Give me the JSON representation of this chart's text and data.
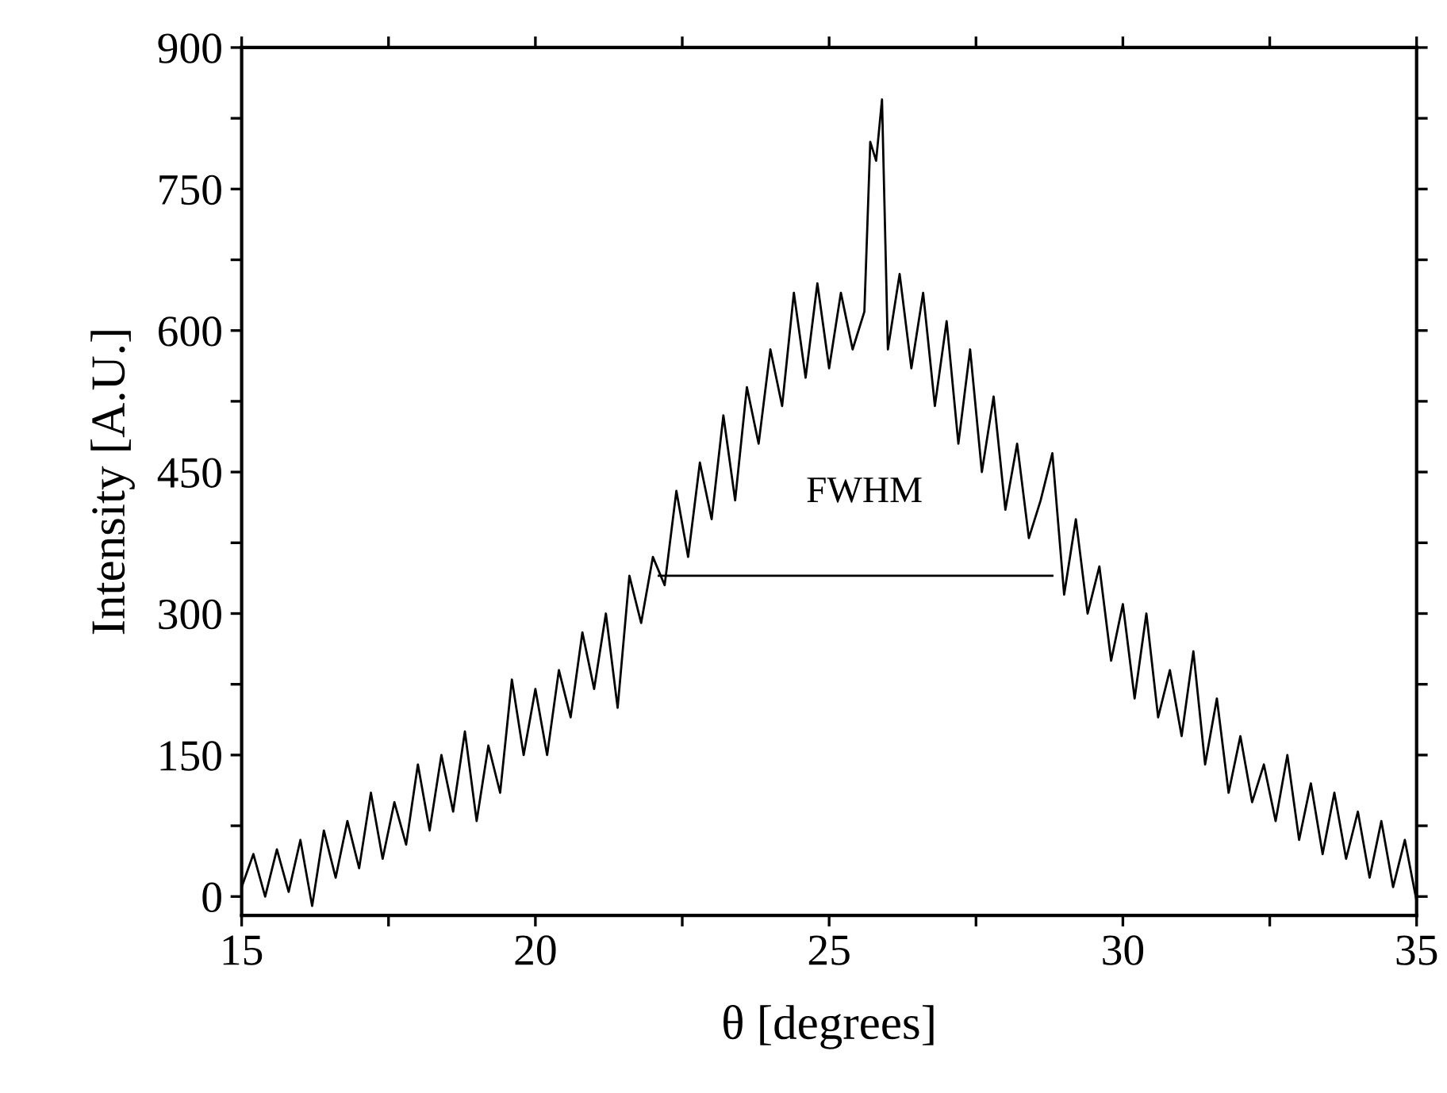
{
  "chart_data": {
    "type": "line",
    "xlabel": "θ [degrees]",
    "ylabel": "Intensity [A.U.]",
    "xlim": [
      15,
      35
    ],
    "ylim": [
      -20,
      900
    ],
    "xticks": [
      15,
      {
        "value": 17.5,
        "label": null
      },
      20,
      {
        "value": 22.5,
        "label": null
      },
      25,
      {
        "value": 27.5,
        "label": null
      },
      30,
      {
        "value": 32.5,
        "label": null
      },
      35
    ],
    "yticks": [
      0,
      {
        "value": 75,
        "label": null
      },
      150,
      {
        "value": 225,
        "label": null
      },
      300,
      {
        "value": 375,
        "label": null
      },
      450,
      {
        "value": 525,
        "label": null
      },
      600,
      {
        "value": 675,
        "label": null
      },
      750,
      {
        "value": 825,
        "label": null
      },
      900
    ],
    "grid": false,
    "legend": false,
    "marker": "none",
    "line_style": "solid",
    "annotations": [
      "FWHM"
    ],
    "series": [
      {
        "color": "#000000",
        "x": [
          15.0,
          15.2,
          15.4,
          15.6,
          15.8,
          16.0,
          16.2,
          16.4,
          16.6,
          16.8,
          17.0,
          17.2,
          17.4,
          17.6,
          17.8,
          18.0,
          18.2,
          18.4,
          18.6,
          18.8,
          19.0,
          19.2,
          19.4,
          19.6,
          19.8,
          20.0,
          20.2,
          20.4,
          20.6,
          20.8,
          21.0,
          21.2,
          21.4,
          21.6,
          21.8,
          22.0,
          22.2,
          22.4,
          22.6,
          22.8,
          23.0,
          23.2,
          23.4,
          23.6,
          23.8,
          24.0,
          24.2,
          24.4,
          24.6,
          24.8,
          25.0,
          25.2,
          25.4,
          25.6,
          25.7,
          25.8,
          25.9,
          26.0,
          26.2,
          26.4,
          26.6,
          26.8,
          27.0,
          27.2,
          27.4,
          27.6,
          27.8,
          28.0,
          28.2,
          28.4,
          28.6,
          28.8,
          29.0,
          29.2,
          29.4,
          29.6,
          29.8,
          30.0,
          30.2,
          30.4,
          30.6,
          30.8,
          31.0,
          31.2,
          31.4,
          31.6,
          31.8,
          32.0,
          32.2,
          32.4,
          32.6,
          32.8,
          33.0,
          33.2,
          33.4,
          33.6,
          33.8,
          34.0,
          34.2,
          34.4,
          34.6,
          34.8,
          35.0
        ],
        "values": [
          10,
          45,
          0,
          50,
          5,
          60,
          -10,
          70,
          20,
          80,
          30,
          110,
          40,
          100,
          55,
          140,
          70,
          150,
          90,
          175,
          80,
          160,
          110,
          230,
          150,
          220,
          150,
          240,
          190,
          280,
          220,
          300,
          200,
          340,
          290,
          360,
          330,
          430,
          360,
          460,
          400,
          510,
          420,
          540,
          480,
          580,
          520,
          640,
          550,
          650,
          560,
          640,
          580,
          620,
          800,
          780,
          845,
          580,
          660,
          560,
          640,
          520,
          610,
          480,
          580,
          450,
          530,
          410,
          480,
          380,
          420,
          470,
          320,
          400,
          300,
          350,
          250,
          310,
          210,
          300,
          190,
          240,
          170,
          260,
          140,
          210,
          110,
          170,
          100,
          140,
          80,
          150,
          60,
          120,
          45,
          110,
          40,
          90,
          20,
          80,
          10,
          60,
          -5
        ]
      },
      {
        "type": "line",
        "color": "#000000",
        "x": [
          22.1,
          28.8
        ],
        "values": [
          340,
          340
        ]
      }
    ]
  }
}
